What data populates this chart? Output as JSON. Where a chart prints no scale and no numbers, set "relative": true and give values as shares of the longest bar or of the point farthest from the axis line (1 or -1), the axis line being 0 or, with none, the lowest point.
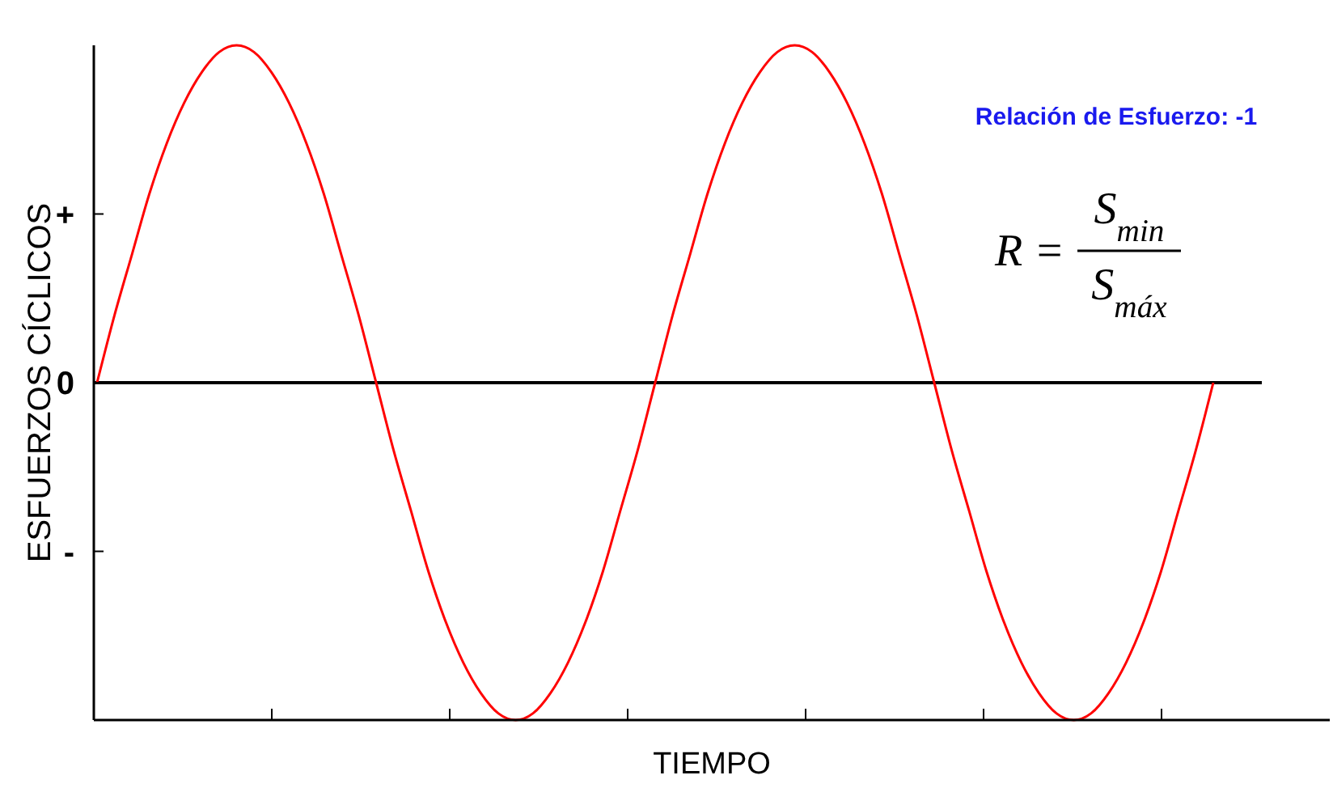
{
  "chart_data": {
    "type": "line",
    "xlabel": "TIEMPO",
    "ylabel": "ESFUERZOS CÍCLICOS",
    "categories": [
      null,
      null,
      null,
      null,
      null,
      null,
      null,
      null,
      null,
      null,
      null,
      null,
      null,
      null,
      null,
      null,
      null,
      null,
      null,
      null,
      null,
      null,
      null,
      null,
      null,
      null,
      null,
      null,
      null,
      null,
      null,
      null,
      null,
      null,
      null,
      null,
      null,
      null,
      null,
      null,
      null,
      null,
      null,
      null,
      null,
      null,
      null,
      null,
      null,
      null,
      null,
      null,
      null,
      null,
      null,
      null,
      null,
      null,
      null,
      null,
      null,
      null,
      null,
      null,
      null
    ],
    "series": [
      {
        "color": "#ff0000",
        "values": [
          0,
          0.2,
          0.38,
          0.56,
          0.71,
          0.83,
          0.92,
          0.98,
          1,
          0.98,
          0.92,
          0.83,
          0.71,
          0.56,
          0.38,
          0.2,
          0,
          -0.2,
          -0.38,
          -0.56,
          -0.71,
          -0.83,
          -0.92,
          -0.98,
          -1,
          -0.98,
          -0.92,
          -0.83,
          -0.71,
          -0.56,
          -0.38,
          -0.2,
          0,
          0.2,
          0.38,
          0.56,
          0.71,
          0.83,
          0.92,
          0.98,
          1,
          0.98,
          0.92,
          0.83,
          0.71,
          0.56,
          0.38,
          0.2,
          0,
          -0.2,
          -0.38,
          -0.56,
          -0.71,
          -0.83,
          -0.92,
          -0.98,
          -1,
          -0.98,
          -0.92,
          -0.83,
          -0.71,
          -0.56,
          -0.38,
          -0.2,
          0
        ]
      }
    ],
    "relative": true,
    "annotations": [
      "Relación de Esfuerzo: -1",
      "R =",
      "S$_{min}$",
      "S$_{máx}$",
      "+",
      "0",
      "-"
    ]
  }
}
